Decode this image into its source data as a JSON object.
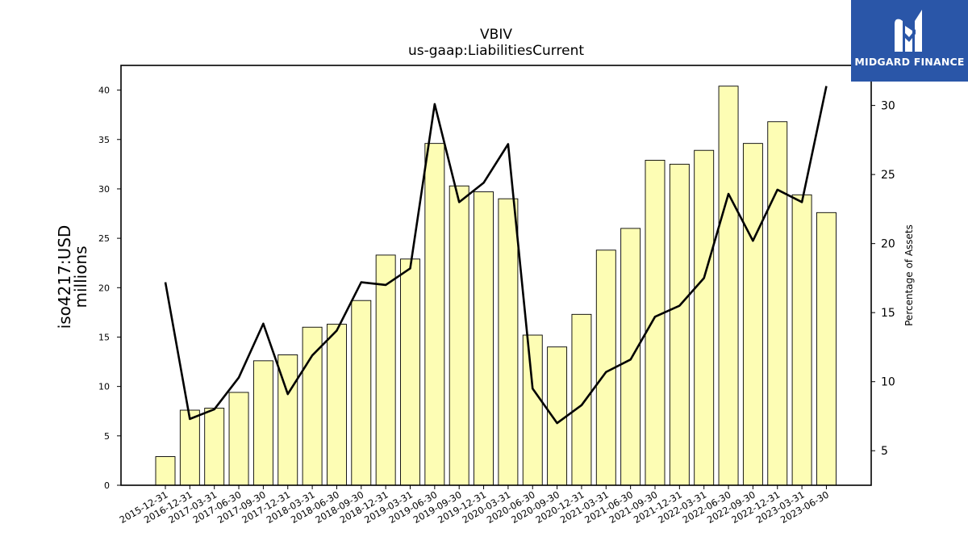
{
  "header": {
    "title": "VBIV",
    "subtitle": "us-gaap:LiabilitiesCurrent"
  },
  "logo": {
    "text": "MIDGARD FINANCE",
    "icon": "midgard-m-logo",
    "background": "#2a56a8"
  },
  "colors": {
    "bar_fill": "#fdfdb4",
    "bar_edge": "#000000",
    "line": "#000000"
  },
  "chart_data": {
    "type": "bar",
    "title": "VBIV",
    "subtitle": "us-gaap:LiabilitiesCurrent",
    "ylabel": "iso4217:USD millions",
    "ylabel_lines": [
      "iso4217:USD",
      "millions"
    ],
    "y2label": "Percentage of Assets",
    "ylim": [
      0,
      42.5
    ],
    "y2lim": [
      2.5,
      32.9
    ],
    "yticks": [
      0,
      5,
      10,
      15,
      20,
      25,
      30,
      35,
      40
    ],
    "y2ticks": [
      5,
      10,
      15,
      20,
      25,
      30
    ],
    "grid": false,
    "categories": [
      "2015-12-31",
      "2016-12-31",
      "2017-03-31",
      "2017-06-30",
      "2017-09-30",
      "2017-12-31",
      "2018-03-31",
      "2018-06-30",
      "2018-09-30",
      "2018-12-31",
      "2019-03-31",
      "2019-06-30",
      "2019-09-30",
      "2019-12-31",
      "2020-03-31",
      "2020-06-30",
      "2020-09-30",
      "2020-12-31",
      "2021-03-31",
      "2021-06-30",
      "2021-09-30",
      "2021-12-31",
      "2022-03-31",
      "2022-06-30",
      "2022-09-30",
      "2022-12-31",
      "2023-03-31",
      "2023-06-30"
    ],
    "series": [
      {
        "type": "bar",
        "axis": "left",
        "values": [
          2.9,
          7.6,
          7.8,
          9.4,
          12.6,
          13.2,
          16.0,
          16.3,
          18.7,
          23.3,
          22.9,
          34.6,
          30.3,
          29.7,
          29.0,
          15.2,
          14.0,
          17.3,
          23.8,
          26.0,
          32.9,
          32.5,
          33.9,
          40.4,
          34.6,
          36.8,
          29.4,
          27.6
        ]
      },
      {
        "type": "line",
        "axis": "right",
        "values": [
          17.2,
          7.3,
          8.0,
          10.3,
          14.2,
          9.1,
          11.9,
          13.7,
          17.2,
          17.0,
          18.2,
          30.1,
          23.0,
          24.4,
          27.2,
          9.5,
          7.0,
          8.3,
          10.7,
          11.6,
          14.7,
          15.5,
          17.5,
          23.6,
          20.2,
          23.9,
          23.0,
          31.4
        ]
      }
    ]
  }
}
